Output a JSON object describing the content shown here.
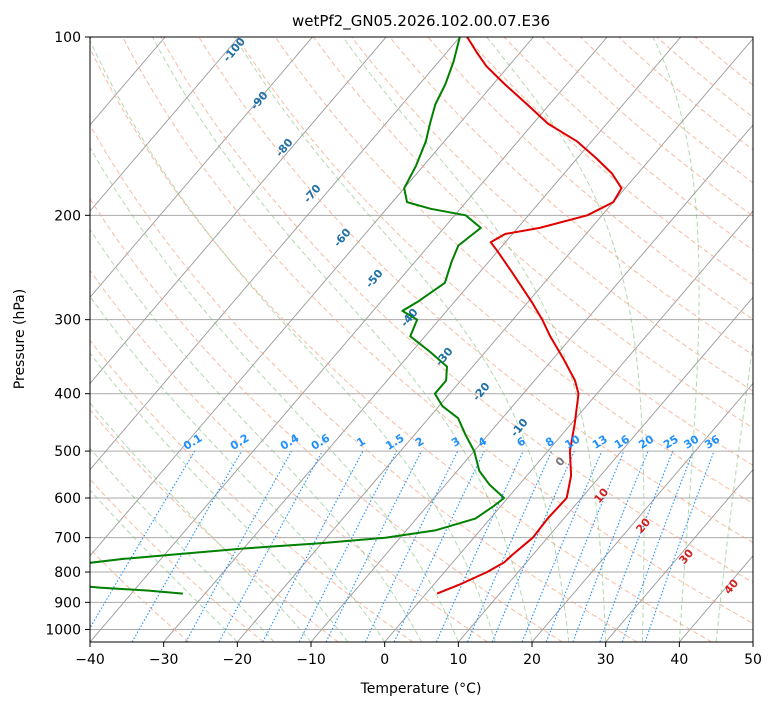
{
  "chart_data": {
    "type": "skew-t",
    "title": "wetPf2_GN05.2026.102.00.07.E36",
    "xlabel": "Temperature (°C)",
    "ylabel": "Pressure (hPa)",
    "xlim": [
      -40,
      50
    ],
    "ylim": [
      1050,
      100
    ],
    "y_scale": "log",
    "x_ticks": [
      -40,
      -30,
      -20,
      -10,
      0,
      10,
      20,
      30,
      40,
      50
    ],
    "x_tick_labels": [
      "−40",
      "−30",
      "−20",
      "−10",
      "0",
      "10",
      "20",
      "30",
      "40",
      "50"
    ],
    "y_ticks": [
      1000,
      900,
      800,
      700,
      600,
      500,
      400,
      300,
      200,
      100
    ],
    "y_tick_labels": [
      "1000",
      "900",
      "800",
      "700",
      "600",
      "500",
      "400",
      "300",
      "200",
      "100"
    ],
    "grid": true,
    "series": [
      {
        "color": "#e00000",
        "variable": "temperature",
        "points": [
          [
            870,
            1.5
          ],
          [
            840,
            3.5
          ],
          [
            800,
            5.8
          ],
          [
            770,
            7.0
          ],
          [
            750,
            7.2
          ],
          [
            700,
            8.0
          ],
          [
            650,
            7.8
          ],
          [
            600,
            8.0
          ],
          [
            550,
            6.0
          ],
          [
            500,
            3.0
          ],
          [
            450,
            0.5
          ],
          [
            400,
            -2.5
          ],
          [
            380,
            -4.5
          ],
          [
            350,
            -8.5
          ],
          [
            320,
            -13.0
          ],
          [
            300,
            -16.0
          ],
          [
            280,
            -19.5
          ],
          [
            250,
            -25.5
          ],
          [
            230,
            -30.0
          ],
          [
            222,
            -32.0
          ],
          [
            215,
            -31.0
          ],
          [
            210,
            -27.0
          ],
          [
            200,
            -22.0
          ],
          [
            190,
            -20.0
          ],
          [
            180,
            -20.5
          ],
          [
            170,
            -23.5
          ],
          [
            160,
            -27.5
          ],
          [
            150,
            -32.0
          ],
          [
            140,
            -38.0
          ],
          [
            130,
            -43.0
          ],
          [
            120,
            -48.5
          ],
          [
            112,
            -53.0
          ],
          [
            106,
            -56.0
          ],
          [
            100,
            -59.0
          ]
        ]
      },
      {
        "color": "#008000",
        "variable": "dewpoint",
        "points": [
          [
            870,
            -33.0
          ],
          [
            860,
            -38.0
          ],
          [
            850,
            -45.0
          ],
          [
            800,
            -72.0
          ],
          [
            780,
            -52.0
          ],
          [
            760,
            -45.0
          ],
          [
            750,
            -40.0
          ],
          [
            730,
            -30.0
          ],
          [
            715,
            -20.0
          ],
          [
            700,
            -12.0
          ],
          [
            680,
            -6.0
          ],
          [
            650,
            -2.0
          ],
          [
            620,
            -1.0
          ],
          [
            600,
            -0.5
          ],
          [
            570,
            -4.0
          ],
          [
            540,
            -7.0
          ],
          [
            500,
            -10.0
          ],
          [
            470,
            -13.0
          ],
          [
            440,
            -16.0
          ],
          [
            420,
            -19.5
          ],
          [
            400,
            -22.0
          ],
          [
            380,
            -22.0
          ],
          [
            360,
            -23.5
          ],
          [
            340,
            -27.5
          ],
          [
            320,
            -32.0
          ],
          [
            300,
            -33.0
          ],
          [
            290,
            -36.0
          ],
          [
            280,
            -35.0
          ],
          [
            260,
            -33.5
          ],
          [
            240,
            -35.0
          ],
          [
            225,
            -36.0
          ],
          [
            210,
            -35.0
          ],
          [
            200,
            -38.5
          ],
          [
            195,
            -44.0
          ],
          [
            190,
            -48.0
          ],
          [
            180,
            -50.0
          ],
          [
            165,
            -51.0
          ],
          [
            150,
            -52.5
          ],
          [
            140,
            -54.0
          ],
          [
            130,
            -55.5
          ],
          [
            120,
            -56.5
          ],
          [
            110,
            -58.0
          ],
          [
            100,
            -60.0
          ]
        ]
      }
    ],
    "dry_adiabat_labels": [
      "-100",
      "-90",
      "-80",
      "-70",
      "-60",
      "-50",
      "-40",
      "-30",
      "-20",
      "-10"
    ],
    "moist_adiabat_labels": [
      "0",
      "10",
      "20",
      "30",
      "40"
    ],
    "mixing_ratio_labels": [
      "0.1",
      "0.2",
      "0.4",
      "0.6",
      "1",
      "1.5",
      "2",
      "3",
      "4",
      "6",
      "8",
      "10",
      "13",
      "16",
      "20",
      "25",
      "30",
      "36"
    ],
    "line_colors": {
      "isotherm": "#999999",
      "dry_adiabat": "#f4a582",
      "moist_adiabat": "#7fbf7b",
      "mixing_ratio": "#1e90ff",
      "grey_adiabat": "#c8a878"
    }
  }
}
